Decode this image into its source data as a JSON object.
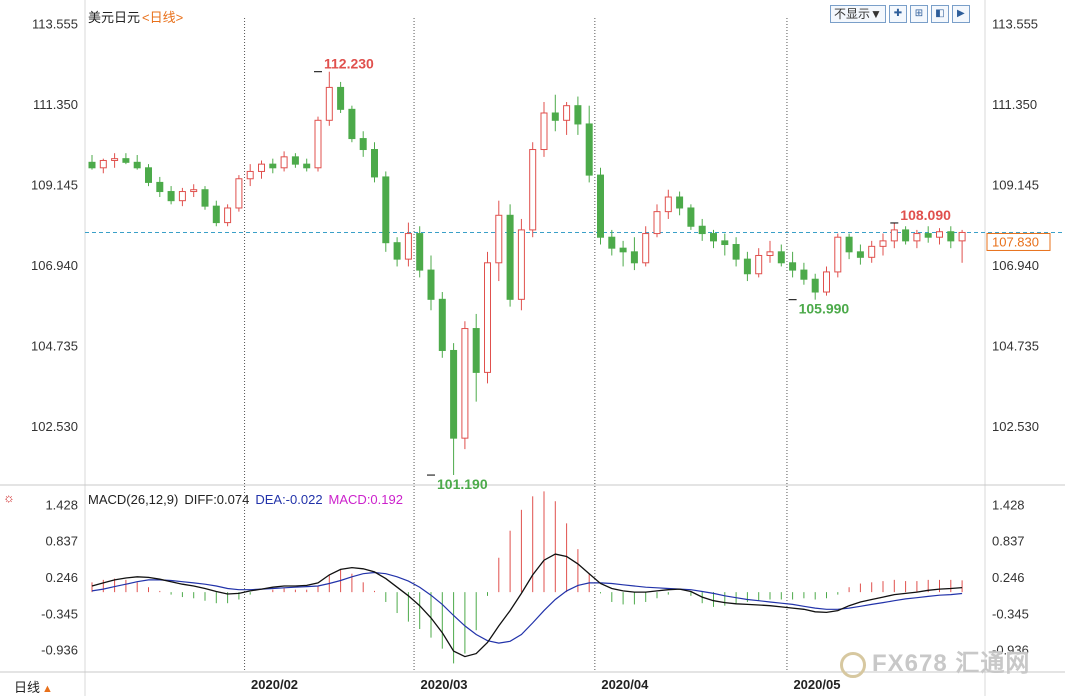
{
  "header": {
    "instrument": "美元日元",
    "timeframe_link": "<日线>",
    "display_dropdown": "不显示▼",
    "toolbar_buttons": [
      "crosshair-icon",
      "zoom-in-icon",
      "zoom-out-icon",
      "fit-icon"
    ]
  },
  "macd_legend": {
    "name": "MACD(26,12,9)",
    "diff": "DIFF:0.074",
    "dea": "DEA:-0.022",
    "macd": "MACD:0.192"
  },
  "period_tab": {
    "label": "日线",
    "arrow": "▲"
  },
  "watermark": "FX678 汇通网",
  "colors": {
    "up": "#e0504d",
    "down": "#4caa4a",
    "diff_line": "#111111",
    "dea_line": "#2233aa",
    "current_price_line": "#3aa0c8",
    "current_price_tag": "#e8701a"
  },
  "chart_data": [
    {
      "type": "candlestick",
      "y_ticks": [
        "113.555",
        "111.350",
        "109.145",
        "106.940",
        "104.735",
        "102.530"
      ],
      "ylim": [
        101.0,
        113.7
      ],
      "x_ticks": [
        "2020/02",
        "2020/03",
        "2020/04",
        "2020/05"
      ],
      "x_tick_indices": [
        14,
        29,
        45,
        62
      ],
      "current_price": 107.83,
      "current_price_label": "107.830",
      "annotations": [
        {
          "label": "112.230",
          "index": 20,
          "value": 112.23,
          "kind": "high"
        },
        {
          "label": "101.190",
          "index": 30,
          "value": 101.19,
          "kind": "low"
        },
        {
          "label": "105.990",
          "index": 62,
          "value": 105.99,
          "kind": "low"
        },
        {
          "label": "108.090",
          "index": 71,
          "value": 108.09,
          "kind": "high"
        }
      ],
      "ohlc": [
        [
          109.75,
          109.95,
          109.55,
          109.6
        ],
        [
          109.6,
          109.85,
          109.45,
          109.8
        ],
        [
          109.8,
          110.0,
          109.6,
          109.85
        ],
        [
          109.85,
          110.0,
          109.7,
          109.75
        ],
        [
          109.75,
          109.95,
          109.55,
          109.6
        ],
        [
          109.6,
          109.7,
          109.1,
          109.2
        ],
        [
          109.2,
          109.35,
          108.8,
          108.95
        ],
        [
          108.95,
          109.1,
          108.6,
          108.7
        ],
        [
          108.7,
          109.05,
          108.55,
          108.95
        ],
        [
          108.95,
          109.15,
          108.8,
          109.0
        ],
        [
          109.0,
          109.1,
          108.45,
          108.55
        ],
        [
          108.55,
          108.7,
          108.0,
          108.1
        ],
        [
          108.1,
          108.6,
          108.0,
          108.5
        ],
        [
          108.5,
          109.4,
          108.4,
          109.3
        ],
        [
          109.3,
          109.7,
          109.1,
          109.5
        ],
        [
          109.5,
          109.8,
          109.3,
          109.7
        ],
        [
          109.7,
          109.85,
          109.45,
          109.6
        ],
        [
          109.6,
          110.05,
          109.5,
          109.9
        ],
        [
          109.9,
          110.0,
          109.6,
          109.7
        ],
        [
          109.7,
          109.85,
          109.5,
          109.6
        ],
        [
          109.6,
          111.0,
          109.5,
          110.9
        ],
        [
          110.9,
          112.23,
          110.75,
          111.8
        ],
        [
          111.8,
          111.95,
          111.1,
          111.2
        ],
        [
          111.2,
          111.3,
          110.3,
          110.4
        ],
        [
          110.4,
          110.6,
          109.9,
          110.1
        ],
        [
          110.1,
          110.3,
          109.2,
          109.35
        ],
        [
          109.35,
          109.5,
          107.3,
          107.55
        ],
        [
          107.55,
          107.7,
          106.9,
          107.1
        ],
        [
          107.1,
          108.1,
          106.9,
          107.8
        ],
        [
          107.8,
          108.0,
          106.6,
          106.8
        ],
        [
          106.8,
          107.2,
          105.7,
          106.0
        ],
        [
          106.0,
          106.2,
          104.4,
          104.6
        ],
        [
          104.6,
          104.8,
          101.19,
          102.2
        ],
        [
          102.2,
          105.4,
          101.9,
          105.2
        ],
        [
          105.2,
          105.6,
          103.2,
          104.0
        ],
        [
          104.0,
          107.3,
          103.7,
          107.0
        ],
        [
          107.0,
          108.7,
          106.5,
          108.3
        ],
        [
          108.3,
          108.6,
          105.8,
          106.0
        ],
        [
          106.0,
          108.2,
          105.7,
          107.9
        ],
        [
          107.9,
          110.3,
          107.7,
          110.1
        ],
        [
          110.1,
          111.4,
          109.9,
          111.1
        ],
        [
          111.1,
          111.6,
          110.6,
          110.9
        ],
        [
          110.9,
          111.4,
          110.5,
          111.3
        ],
        [
          111.3,
          111.55,
          110.5,
          110.8
        ],
        [
          110.8,
          111.3,
          109.2,
          109.4
        ],
        [
          109.4,
          109.6,
          107.5,
          107.7
        ],
        [
          107.7,
          107.9,
          107.2,
          107.4
        ],
        [
          107.4,
          107.6,
          106.9,
          107.3
        ],
        [
          107.3,
          107.7,
          106.8,
          107.0
        ],
        [
          107.0,
          108.0,
          106.9,
          107.8
        ],
        [
          107.8,
          108.6,
          107.7,
          108.4
        ],
        [
          108.4,
          109.0,
          108.2,
          108.8
        ],
        [
          108.8,
          108.95,
          108.3,
          108.5
        ],
        [
          108.5,
          108.6,
          107.9,
          108.0
        ],
        [
          108.0,
          108.2,
          107.6,
          107.8
        ],
        [
          107.8,
          107.9,
          107.4,
          107.6
        ],
        [
          107.6,
          107.8,
          107.2,
          107.5
        ],
        [
          107.5,
          107.7,
          106.9,
          107.1
        ],
        [
          107.1,
          107.3,
          106.5,
          106.7
        ],
        [
          106.7,
          107.4,
          106.6,
          107.2
        ],
        [
          107.2,
          107.6,
          107.0,
          107.3
        ],
        [
          107.3,
          107.5,
          106.9,
          107.0
        ],
        [
          107.0,
          107.3,
          106.6,
          106.8
        ],
        [
          106.8,
          107.0,
          106.4,
          106.55
        ],
        [
          106.55,
          106.7,
          105.99,
          106.2
        ],
        [
          106.2,
          106.9,
          106.1,
          106.75
        ],
        [
          106.75,
          107.8,
          106.6,
          107.7
        ],
        [
          107.7,
          107.8,
          107.1,
          107.3
        ],
        [
          107.3,
          107.5,
          106.95,
          107.15
        ],
        [
          107.15,
          107.6,
          107.0,
          107.45
        ],
        [
          107.45,
          107.8,
          107.2,
          107.6
        ],
        [
          107.6,
          108.09,
          107.4,
          107.9
        ],
        [
          107.9,
          108.0,
          107.5,
          107.6
        ],
        [
          107.6,
          107.9,
          107.4,
          107.8
        ],
        [
          107.8,
          108.0,
          107.55,
          107.7
        ],
        [
          107.7,
          107.95,
          107.5,
          107.85
        ],
        [
          107.85,
          108.0,
          107.4,
          107.6
        ],
        [
          107.6,
          107.9,
          107.0,
          107.83
        ]
      ]
    },
    {
      "type": "macd",
      "params": "(26,12,9)",
      "y_ticks": [
        "1.428",
        "0.837",
        "0.246",
        "-0.345",
        "-0.936"
      ],
      "ylim": [
        -1.3,
        1.5
      ],
      "diff": [
        0.1,
        0.15,
        0.2,
        0.23,
        0.25,
        0.24,
        0.21,
        0.17,
        0.13,
        0.1,
        0.06,
        0.01,
        -0.03,
        -0.02,
        0.02,
        0.05,
        0.08,
        0.1,
        0.1,
        0.11,
        0.15,
        0.28,
        0.37,
        0.4,
        0.38,
        0.33,
        0.22,
        0.08,
        -0.06,
        -0.22,
        -0.42,
        -0.66,
        -0.96,
        -1.05,
        -1.0,
        -0.82,
        -0.55,
        -0.3,
        -0.02,
        0.28,
        0.52,
        0.62,
        0.58,
        0.46,
        0.3,
        0.14,
        0.06,
        0.02,
        0.0,
        0.0,
        0.02,
        0.04,
        0.05,
        0.01,
        -0.08,
        -0.14,
        -0.17,
        -0.19,
        -0.2,
        -0.21,
        -0.22,
        -0.24,
        -0.26,
        -0.28,
        -0.32,
        -0.33,
        -0.3,
        -0.22,
        -0.16,
        -0.12,
        -0.08,
        -0.04,
        -0.02,
        0.0,
        0.03,
        0.05,
        0.06,
        0.074
      ],
      "dea": [
        0.02,
        0.05,
        0.09,
        0.13,
        0.17,
        0.2,
        0.2,
        0.19,
        0.17,
        0.15,
        0.13,
        0.1,
        0.06,
        0.04,
        0.04,
        0.05,
        0.06,
        0.07,
        0.08,
        0.09,
        0.1,
        0.14,
        0.19,
        0.25,
        0.3,
        0.32,
        0.3,
        0.25,
        0.18,
        0.08,
        -0.05,
        -0.2,
        -0.38,
        -0.55,
        -0.69,
        -0.79,
        -0.83,
        -0.8,
        -0.69,
        -0.5,
        -0.3,
        -0.12,
        0.02,
        0.11,
        0.15,
        0.15,
        0.14,
        0.12,
        0.1,
        0.08,
        0.07,
        0.06,
        0.05,
        0.04,
        0.01,
        -0.02,
        -0.06,
        -0.09,
        -0.12,
        -0.14,
        -0.16,
        -0.18,
        -0.2,
        -0.23,
        -0.26,
        -0.28,
        -0.28,
        -0.26,
        -0.23,
        -0.2,
        -0.17,
        -0.14,
        -0.11,
        -0.09,
        -0.07,
        -0.05,
        -0.04,
        -0.022
      ]
    }
  ]
}
